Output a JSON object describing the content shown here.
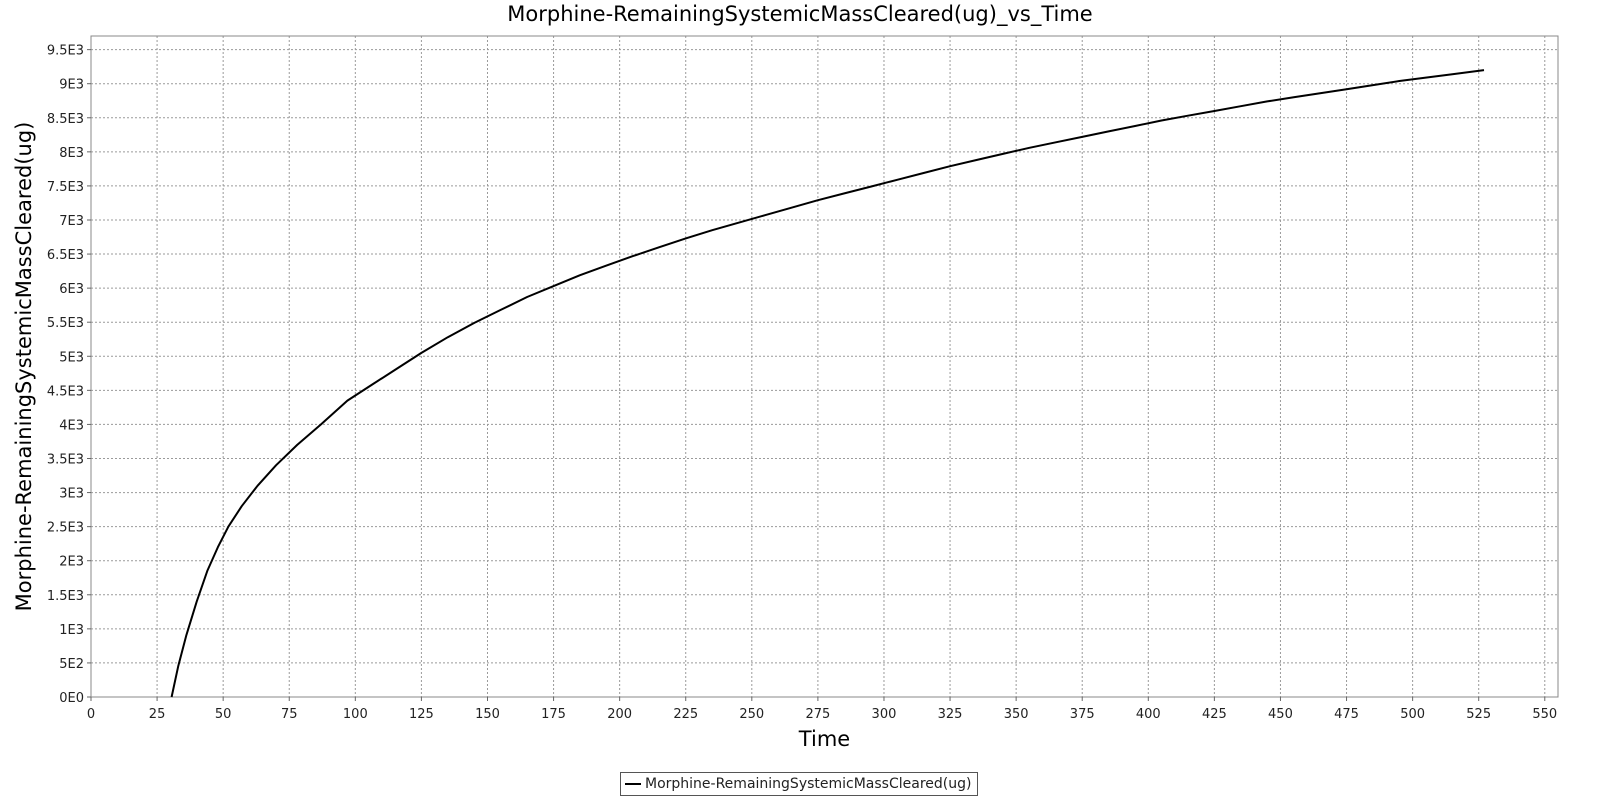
{
  "chart_data": {
    "type": "line",
    "title": "Morphine-RemainingSystemicMassCleared(ug)_vs_Time",
    "xlabel": "Time",
    "ylabel": "Morphine-RemainingSystemicMassCleared(ug)",
    "xlim": [
      0,
      555
    ],
    "ylim": [
      0,
      9700
    ],
    "xticks": [
      0,
      25,
      50,
      75,
      100,
      125,
      150,
      175,
      200,
      225,
      250,
      275,
      300,
      325,
      350,
      375,
      400,
      425,
      450,
      475,
      500,
      525,
      550
    ],
    "xtick_labels": [
      "0",
      "25",
      "50",
      "75",
      "100",
      "125",
      "150",
      "175",
      "200",
      "225",
      "250",
      "275",
      "300",
      "325",
      "350",
      "375",
      "400",
      "425",
      "450",
      "475",
      "500",
      "525",
      "550"
    ],
    "yticks": [
      0,
      500,
      1000,
      1500,
      2000,
      2500,
      3000,
      3500,
      4000,
      4500,
      5000,
      5500,
      6000,
      6500,
      7000,
      7500,
      8000,
      8500,
      9000,
      9500
    ],
    "ytick_labels": [
      "0E0",
      "5E2",
      "1E3",
      "1.5E3",
      "2E3",
      "2.5E3",
      "3E3",
      "3.5E3",
      "4E3",
      "4.5E3",
      "5E3",
      "5.5E3",
      "6E3",
      "6.5E3",
      "7E3",
      "7.5E3",
      "8E3",
      "8.5E3",
      "9E3",
      "9.5E3"
    ],
    "grid": true,
    "legend_position": "bottom-center",
    "series": [
      {
        "name": "Morphine-RemainingSystemicMassCleared(ug)",
        "color": "#000000",
        "x": [
          30.5,
          33,
          36,
          40,
          44,
          48,
          52,
          57,
          63,
          70,
          78,
          87,
          97,
          107,
          115,
          125,
          135,
          145,
          155,
          165,
          175,
          185,
          195,
          205,
          215,
          225,
          235,
          245,
          255,
          265,
          275,
          285,
          295,
          305,
          315,
          325,
          335,
          345,
          355,
          365,
          375,
          385,
          395,
          405,
          415,
          425,
          435,
          445,
          455,
          465,
          475,
          485,
          495,
          505,
          515,
          527
        ],
        "y": [
          0,
          450,
          900,
          1400,
          1850,
          2200,
          2500,
          2800,
          3100,
          3400,
          3700,
          4000,
          4350,
          4600,
          4800,
          5050,
          5280,
          5490,
          5680,
          5870,
          6030,
          6190,
          6330,
          6470,
          6600,
          6730,
          6850,
          6960,
          7070,
          7180,
          7290,
          7390,
          7490,
          7590,
          7690,
          7790,
          7880,
          7970,
          8060,
          8140,
          8220,
          8300,
          8380,
          8460,
          8530,
          8600,
          8670,
          8740,
          8800,
          8860,
          8920,
          8980,
          9040,
          9090,
          9140,
          9200
        ]
      }
    ]
  }
}
